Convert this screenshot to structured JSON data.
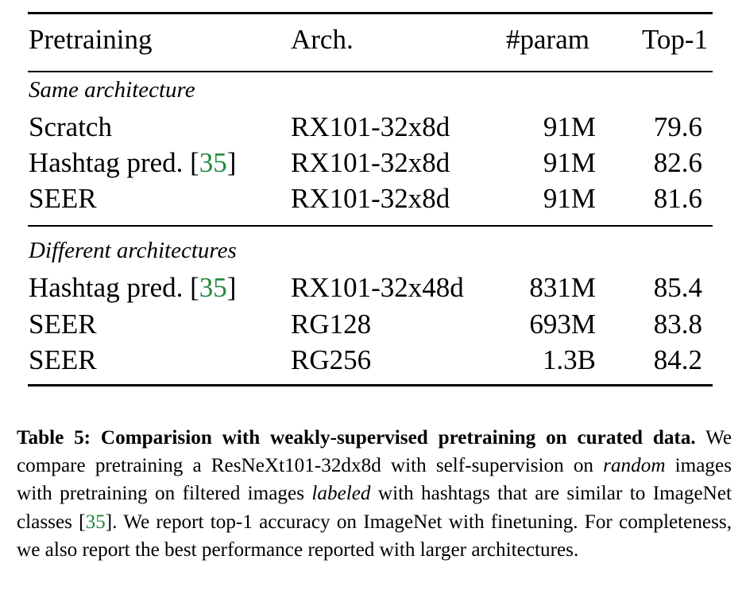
{
  "table": {
    "headers": {
      "pretraining": "Pretraining",
      "arch": "Arch.",
      "param": "#param",
      "top1": "Top-1"
    },
    "sections": [
      {
        "title": "Same architecture",
        "rows": [
          {
            "pretraining": "Scratch",
            "citation": "",
            "arch": "RX101-32x8d",
            "param": "91M",
            "top1": "79.6"
          },
          {
            "pretraining": "Hashtag pred.",
            "citation": "35",
            "arch": "RX101-32x8d",
            "param": "91M",
            "top1": "82.6"
          },
          {
            "pretraining": "SEER",
            "citation": "",
            "arch": "RX101-32x8d",
            "param": "91M",
            "top1": "81.6"
          }
        ]
      },
      {
        "title": "Different architectures",
        "rows": [
          {
            "pretraining": "Hashtag pred.",
            "citation": "35",
            "arch": "RX101-32x48d",
            "param": "831M",
            "top1": "85.4"
          },
          {
            "pretraining": "SEER",
            "citation": "",
            "arch": "RG128",
            "param": "693M",
            "top1": "83.8"
          },
          {
            "pretraining": "SEER",
            "citation": "",
            "arch": "RG256",
            "param": "1.3B",
            "top1": "84.2"
          }
        ]
      }
    ]
  },
  "caption": {
    "label": "Table 5:",
    "bold_title": "Comparision with weakly-supervised pretraining on curated data.",
    "part1": "We compare pretraining a ResNeXt101-32dx8d with self-supervision on",
    "emph1": "random",
    "part2": "images with pretraining on filtered images",
    "emph2": "labeled",
    "part3": "with hashtags that are similar to ImageNet classes",
    "citation": "35",
    "part4": ". We report top-1 accuracy on ImageNet with finetuning. For completeness, we also report the best performance reported with larger architectures."
  },
  "colors": {
    "citation": "#1f8a3c",
    "text": "#000000",
    "rules": "#000000"
  }
}
